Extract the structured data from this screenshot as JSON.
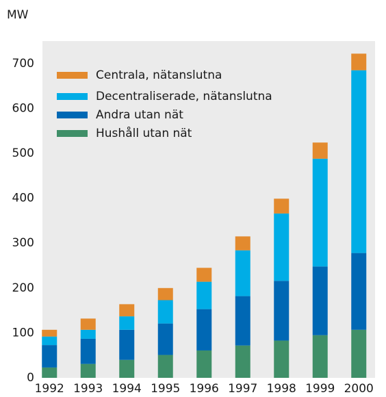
{
  "chart_data": {
    "type": "stacked_bar",
    "ylabel": "MW",
    "categories": [
      "1992",
      "1993",
      "1994",
      "1995",
      "1996",
      "1997",
      "1998",
      "1999",
      "2000"
    ],
    "series": [
      {
        "name": "Hushåll utan nät",
        "color": "#3f8f68",
        "values": [
          23,
          31,
          40,
          51,
          61,
          72,
          83,
          95,
          107
        ]
      },
      {
        "name": "Andra utan nät",
        "color": "#0068b4",
        "values": [
          50,
          56,
          67,
          70,
          92,
          110,
          133,
          153,
          171
        ]
      },
      {
        "name": "Decentraliserade, nätanslutna",
        "color": "#00ade6",
        "values": [
          19,
          20,
          30,
          52,
          61,
          102,
          150,
          240,
          407
        ]
      },
      {
        "name": "Centrala, nätanslutna",
        "color": "#e38a2e",
        "values": [
          15,
          25,
          27,
          27,
          31,
          31,
          33,
          36,
          37
        ]
      }
    ],
    "ylim": [
      0,
      750
    ],
    "yticks": [
      0,
      100,
      200,
      300,
      400,
      500,
      600,
      700
    ],
    "grid": false,
    "legend": "upper left"
  }
}
